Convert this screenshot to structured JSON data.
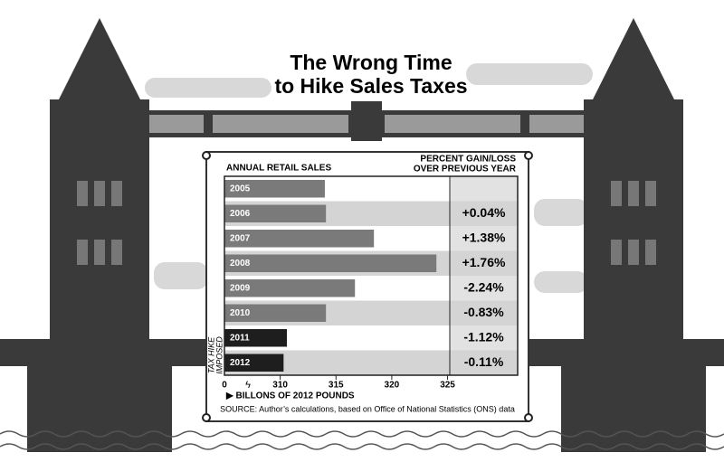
{
  "chart_data": {
    "type": "bar",
    "title_lines": [
      "The Wrong Time",
      "to Hike Sales Taxes"
    ],
    "left_header": "ANNUAL RETAIL SALES",
    "right_header_lines": [
      "PERCENT GAIN/LOSS",
      "OVER PREVIOUS YEAR"
    ],
    "annotation_lines": [
      "TAX HIKE",
      "IMPOSED"
    ],
    "x_label": "▶ BILLONS OF 2012 POUNDS",
    "source": "SOURCE: Author’s calculations, based on Office of National Statistics (ONS) data",
    "categories": [
      "2005",
      "2006",
      "2007",
      "2008",
      "2009",
      "2010",
      "2011",
      "2012"
    ],
    "values": [
      314.0,
      314.1,
      318.4,
      324.0,
      316.7,
      314.1,
      310.6,
      310.3
    ],
    "colors": [
      "#7a7a7a",
      "#7a7a7a",
      "#7a7a7a",
      "#7a7a7a",
      "#7a7a7a",
      "#7a7a7a",
      "#1e1e1e",
      "#1e1e1e"
    ],
    "pct_change": {
      "values": [
        null,
        0.04,
        1.38,
        1.76,
        -2.24,
        -0.83,
        -1.12,
        -0.11
      ],
      "value_labels": [
        null,
        "+0.04%",
        "+1.38%",
        "+1.76%",
        "-2.24%",
        "-0.83%",
        "-1.12%",
        "-0.11%"
      ]
    },
    "x_origin_label": "0",
    "xlim": [
      305,
      325.2
    ],
    "xticks": [
      310,
      315,
      320,
      325
    ]
  }
}
